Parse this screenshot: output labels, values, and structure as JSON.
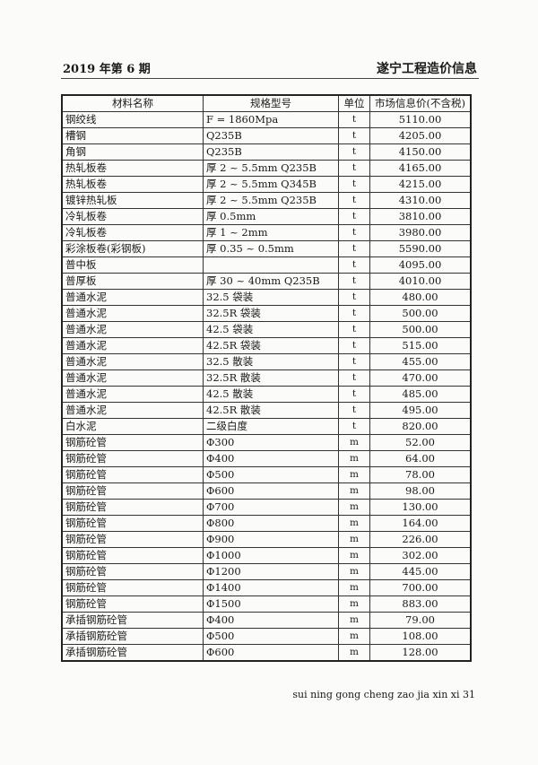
{
  "header": {
    "left": "2019 年第 6 期",
    "right": "遂宁工程造价信息"
  },
  "table": {
    "columns": [
      "材料名称",
      "规格型号",
      "单位",
      "市场信息价(不含税)"
    ],
    "rows": [
      [
        "钢绞线",
        "F = 1860Mpa",
        "t",
        "5110.00"
      ],
      [
        "槽钢",
        "Q235B",
        "t",
        "4205.00"
      ],
      [
        "角钢",
        "Q235B",
        "t",
        "4150.00"
      ],
      [
        "热轧板卷",
        "厚 2 ~ 5.5mm Q235B",
        "t",
        "4165.00"
      ],
      [
        "热轧板卷",
        "厚 2 ~ 5.5mm Q345B",
        "t",
        "4215.00"
      ],
      [
        "镀锌热轧板",
        "厚 2 ~ 5.5mm Q235B",
        "t",
        "4310.00"
      ],
      [
        "冷轧板卷",
        "厚 0.5mm",
        "t",
        "3810.00"
      ],
      [
        "冷轧板卷",
        "厚 1 ~ 2mm",
        "t",
        "3980.00"
      ],
      [
        "彩涂板卷(彩钢板)",
        "厚 0.35 ~ 0.5mm",
        "t",
        "5590.00"
      ],
      [
        "普中板",
        "",
        "t",
        "4095.00"
      ],
      [
        "普厚板",
        "厚 30 ~ 40mm Q235B",
        "t",
        "4010.00"
      ],
      [
        "普通水泥",
        "32.5 袋装",
        "t",
        "480.00"
      ],
      [
        "普通水泥",
        "32.5R 袋装",
        "t",
        "500.00"
      ],
      [
        "普通水泥",
        "42.5 袋装",
        "t",
        "500.00"
      ],
      [
        "普通水泥",
        "42.5R 袋装",
        "t",
        "515.00"
      ],
      [
        "普通水泥",
        "32.5 散装",
        "t",
        "455.00"
      ],
      [
        "普通水泥",
        "32.5R 散装",
        "t",
        "470.00"
      ],
      [
        "普通水泥",
        "42.5 散装",
        "t",
        "485.00"
      ],
      [
        "普通水泥",
        "42.5R 散装",
        "t",
        "495.00"
      ],
      [
        "白水泥",
        "二级白度",
        "t",
        "820.00"
      ],
      [
        "钢筋砼管",
        "Φ300",
        "m",
        "52.00"
      ],
      [
        "钢筋砼管",
        "Φ400",
        "m",
        "64.00"
      ],
      [
        "钢筋砼管",
        "Φ500",
        "m",
        "78.00"
      ],
      [
        "钢筋砼管",
        "Φ600",
        "m",
        "98.00"
      ],
      [
        "钢筋砼管",
        "Φ700",
        "m",
        "130.00"
      ],
      [
        "钢筋砼管",
        "Φ800",
        "m",
        "164.00"
      ],
      [
        "钢筋砼管",
        "Φ900",
        "m",
        "226.00"
      ],
      [
        "钢筋砼管",
        "Φ1000",
        "m",
        "302.00"
      ],
      [
        "钢筋砼管",
        "Φ1200",
        "m",
        "445.00"
      ],
      [
        "钢筋砼管",
        "Φ1400",
        "m",
        "700.00"
      ],
      [
        "钢筋砼管",
        "Φ1500",
        "m",
        "883.00"
      ],
      [
        "承插钢筋砼管",
        "Φ400",
        "m",
        "79.00"
      ],
      [
        "承插钢筋砼管",
        "Φ500",
        "m",
        "108.00"
      ],
      [
        "承插钢筋砼管",
        "Φ600",
        "m",
        "128.00"
      ]
    ]
  },
  "footer": "sui ning gong cheng zao jia xin xi 31"
}
